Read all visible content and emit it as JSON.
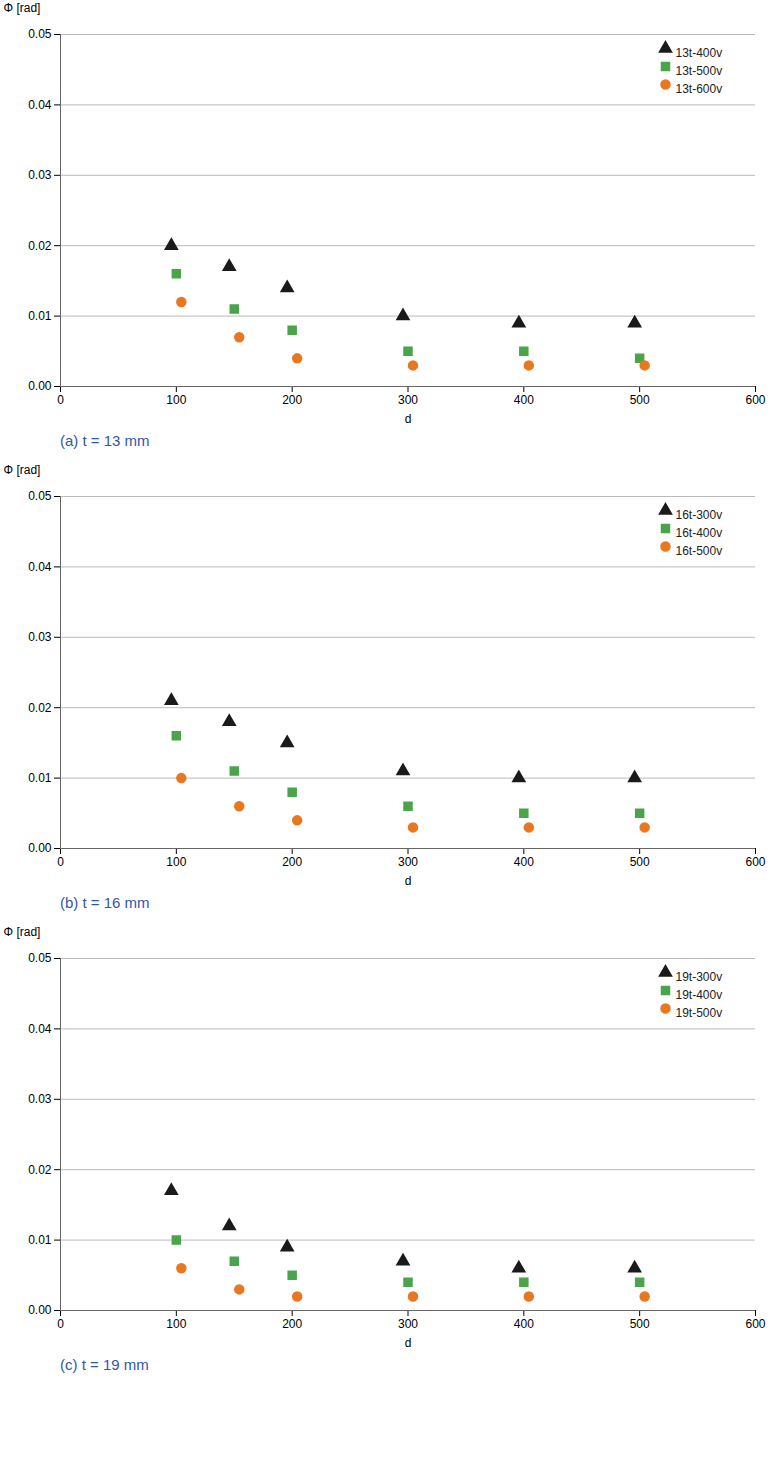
{
  "chart_data": [
    {
      "type": "scatter",
      "subtitle": "(a) t = 13 mm",
      "x": [
        100,
        150,
        200,
        300,
        400,
        500
      ],
      "series": [
        {
          "name": "13t-400v",
          "marker": "triangle",
          "color": "#1a1a1a",
          "values": [
            0.02,
            0.017,
            0.014,
            0.01,
            0.009,
            0.009
          ]
        },
        {
          "name": "13t-500v",
          "marker": "square",
          "color": "#4aA44a",
          "values": [
            0.016,
            0.011,
            0.008,
            0.005,
            0.005,
            0.004
          ]
        },
        {
          "name": "13t-600v",
          "marker": "circle",
          "color": "#E87820",
          "values": [
            0.012,
            0.007,
            0.004,
            0.003,
            0.003,
            0.003
          ]
        }
      ],
      "xlabel": "d",
      "ylabel": "Φ [rad]",
      "xlim": [
        0,
        600
      ],
      "ylim": [
        0.0,
        0.05
      ],
      "xticks": [
        0,
        100,
        200,
        300,
        400,
        500,
        600
      ],
      "yticks": [
        {
          "value": 0,
          "label": "0.00"
        },
        0.01,
        0.02,
        0.03,
        0.04,
        0.05
      ],
      "grid": "y",
      "legend": "upper right"
    },
    {
      "type": "scatter",
      "subtitle": "(b) t = 16 mm",
      "x": [
        100,
        150,
        200,
        300,
        400,
        500
      ],
      "series": [
        {
          "name": "16t-300v",
          "marker": "triangle",
          "color": "#1a1a1a",
          "values": [
            0.021,
            0.018,
            0.015,
            0.011,
            0.01,
            0.01
          ]
        },
        {
          "name": "16t-400v",
          "marker": "square",
          "color": "#4aA44a",
          "values": [
            0.016,
            0.011,
            0.008,
            0.006,
            0.005,
            0.005
          ]
        },
        {
          "name": "16t-500v",
          "marker": "circle",
          "color": "#E87820",
          "values": [
            0.01,
            0.006,
            0.004,
            0.003,
            0.003,
            0.003
          ]
        }
      ],
      "xlabel": "d",
      "ylabel": "Φ [rad]",
      "xlim": [
        0,
        600
      ],
      "ylim": [
        0.0,
        0.05
      ],
      "xticks": [
        0,
        100,
        200,
        300,
        400,
        500,
        600
      ],
      "yticks": [
        {
          "value": 0,
          "label": "0.00"
        },
        0.01,
        0.02,
        0.03,
        0.04,
        0.05
      ],
      "grid": "y",
      "legend": "upper right"
    },
    {
      "type": "scatter",
      "subtitle": "(c) t = 19 mm",
      "x": [
        100,
        150,
        200,
        300,
        400,
        500
      ],
      "series": [
        {
          "name": "19t-300v",
          "marker": "triangle",
          "color": "#1a1a1a",
          "values": [
            0.017,
            0.012,
            0.009,
            0.007,
            0.006,
            0.006
          ]
        },
        {
          "name": "19t-400v",
          "marker": "square",
          "color": "#4aA44a",
          "values": [
            0.01,
            0.007,
            0.005,
            0.004,
            0.004,
            0.004
          ]
        },
        {
          "name": "19t-500v",
          "marker": "circle",
          "color": "#E87820",
          "values": [
            0.006,
            0.003,
            0.002,
            0.002,
            0.002,
            0.002
          ]
        }
      ],
      "xlabel": "d",
      "ylabel": "Φ [rad]",
      "xlim": [
        0,
        600
      ],
      "ylim": [
        0.0,
        0.05
      ],
      "xticks": [
        0,
        100,
        200,
        300,
        400,
        500,
        600
      ],
      "yticks": [
        {
          "value": 0,
          "label": "0.00"
        },
        0.01,
        0.02,
        0.03,
        0.04,
        0.05
      ],
      "grid": "y",
      "legend": "upper right"
    }
  ]
}
